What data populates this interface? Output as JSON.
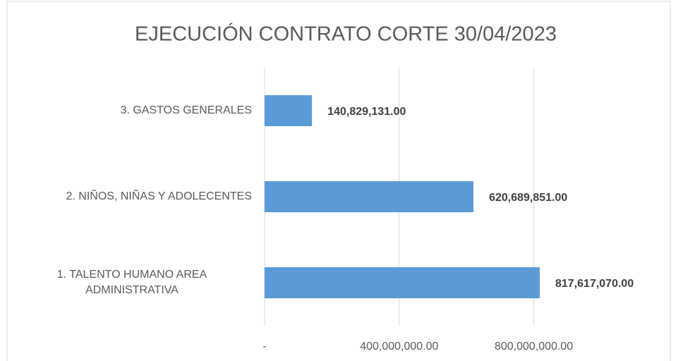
{
  "chart_data": {
    "type": "bar",
    "orientation": "horizontal",
    "title": "EJECUCIÓN CONTRATO CORTE 30/04/2023",
    "categories": [
      "3. GASTOS GENERALES",
      "2. NIÑOS, NIÑAS Y ADOLECENTES",
      "1. TALENTO HUMANO AREA ADMINISTRATIVA"
    ],
    "values": [
      140829131,
      620689851,
      817617070
    ],
    "value_labels": [
      "140,829,131.00",
      "620,689,851.00",
      "817,617,070.00"
    ],
    "color": "#5b9bd5",
    "xlim": [
      0,
      1000000000
    ],
    "xticks": [
      {
        "value": 0,
        "label": "-"
      },
      {
        "value": 400000000,
        "label": "400,000,000.00"
      },
      {
        "value": 800000000,
        "label": "800,000,000.00"
      }
    ],
    "grid": true
  }
}
